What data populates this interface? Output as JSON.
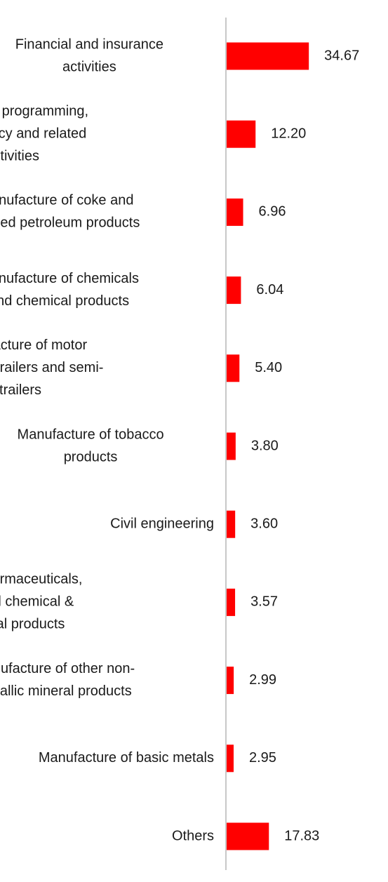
{
  "chart_data": {
    "type": "bar",
    "orientation": "horizontal",
    "title": "",
    "xlabel": "",
    "ylabel": "",
    "grid": false,
    "legend": "none",
    "bar_color": "#ff0000",
    "axis_color": "#c8c8c8",
    "categories": [
      [
        "Financial and insurance",
        "activities"
      ],
      [
        "Computer programming,",
        "consultancy and related",
        "activities"
      ],
      [
        "Manufacture of coke and",
        "refined petroleum products"
      ],
      [
        "Manufacture of chemicals",
        "and chemical products"
      ],
      [
        "Manufacture of motor",
        "vehicles, trailers and semi-",
        "trailers"
      ],
      [
        "Manufacture of tobacco",
        "products"
      ],
      [
        "Civil engineering"
      ],
      [
        "Mfg of pharmaceuticals,",
        "medicinal chemical &",
        "botanical products"
      ],
      [
        "Manufacture of other non-",
        "metallic mineral products"
      ],
      [
        "Manufacture of basic metals"
      ],
      [
        "Others"
      ]
    ],
    "values": [
      34.67,
      12.2,
      6.96,
      6.04,
      5.4,
      3.8,
      3.6,
      3.57,
      2.99,
      2.95,
      17.83
    ],
    "value_labels": [
      "34.67",
      "12.20",
      "6.96",
      "6.04",
      "5.40",
      "3.80",
      "3.60",
      "3.57",
      "2.99",
      "2.95",
      "17.83"
    ],
    "xlim": [
      0,
      100
    ]
  }
}
